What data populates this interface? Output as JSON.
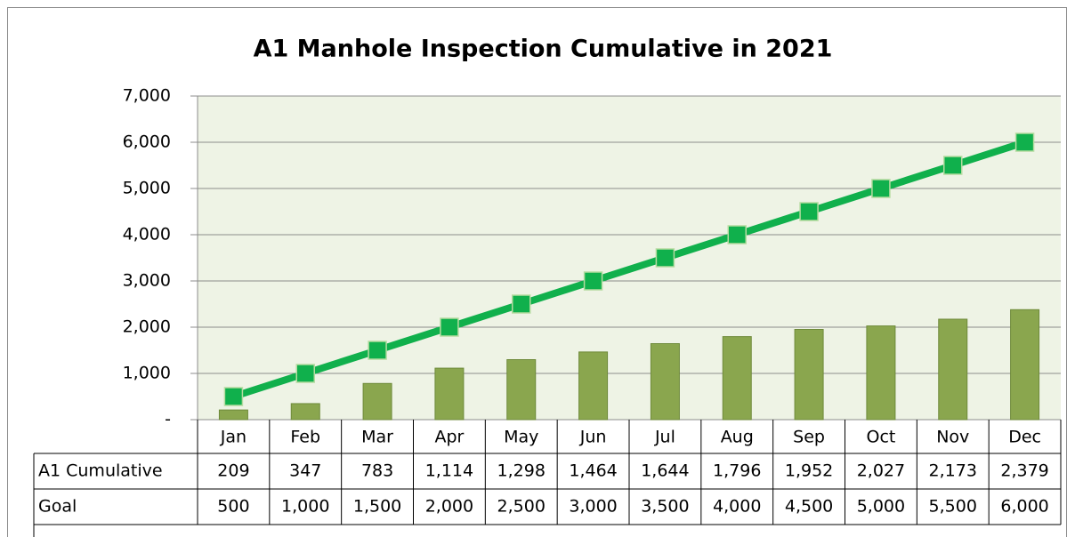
{
  "chart_data": {
    "type": "bar",
    "title": "A1 Manhole Inspection Cumulative in 2021",
    "categories": [
      "Jan",
      "Feb",
      "Mar",
      "Apr",
      "May",
      "Jun",
      "Jul",
      "Aug",
      "Sep",
      "Oct",
      "Nov",
      "Dec"
    ],
    "series": [
      {
        "name": "A1 Cumulative",
        "type": "bar",
        "color": "#8aa64e",
        "values": [
          209,
          347,
          783,
          1114,
          1298,
          1464,
          1644,
          1796,
          1952,
          2027,
          2173,
          2379
        ],
        "value_labels": [
          "209",
          "347",
          "783",
          "1,114",
          "1,298",
          "1,464",
          "1,644",
          "1,796",
          "1,952",
          "2,027",
          "2,173",
          "2,379"
        ]
      },
      {
        "name": "Goal",
        "type": "line",
        "color": "#10b04c",
        "values": [
          500,
          1000,
          1500,
          2000,
          2500,
          3000,
          3500,
          4000,
          4500,
          5000,
          5500,
          6000
        ],
        "value_labels": [
          "500",
          "1,000",
          "1,500",
          "2,000",
          "2,500",
          "3,000",
          "3,500",
          "4,000",
          "4,500",
          "5,000",
          "5,500",
          "6,000"
        ]
      }
    ],
    "ylim": [
      0,
      7000
    ],
    "yticks": [
      {
        "value": 0,
        "label": "-"
      },
      {
        "value": 1000,
        "label": "1,000"
      },
      {
        "value": 2000,
        "label": "2,000"
      },
      {
        "value": 3000,
        "label": "3,000"
      },
      {
        "value": 4000,
        "label": "4,000"
      },
      {
        "value": 5000,
        "label": "5,000"
      },
      {
        "value": 6000,
        "label": "6,000"
      },
      {
        "value": 7000,
        "label": "7,000"
      }
    ],
    "grid": true
  }
}
